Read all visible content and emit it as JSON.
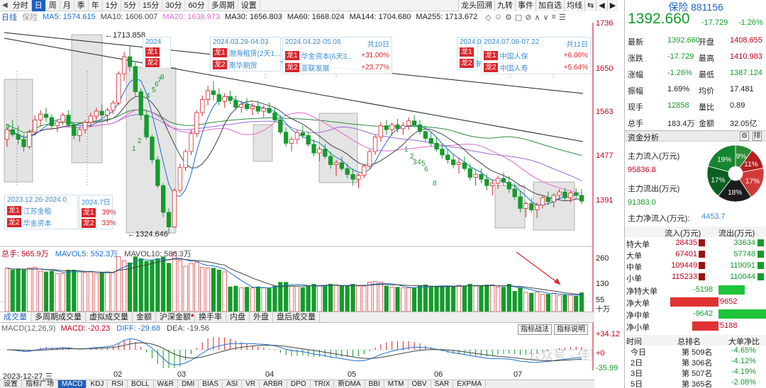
{
  "toolbar": {
    "items": [
      "分时",
      "日",
      "周",
      "月",
      "季",
      "年",
      "1分",
      "5分",
      "15分",
      "30分",
      "60分",
      "多周期",
      "设置"
    ],
    "active_index": 1,
    "right_buttons": [
      "龙头回溯",
      "九转",
      "事件",
      "加自选",
      "均线",
      "⇆"
    ]
  },
  "ma_legend": {
    "label": "日线",
    "name": "保险",
    "entries": [
      {
        "label": "MA5: 1574.615",
        "color": "#1c6fd1"
      },
      {
        "label": "MA10: 1606.007",
        "color": "#444444"
      },
      {
        "label": "MA20: 1638.973",
        "color": "#e26ad3"
      },
      {
        "label": "MA30: 1656.803",
        "color": "#1a1a1a"
      },
      {
        "label": "MA60: 1668.024",
        "color": "#1f1f1f"
      },
      {
        "label": "MA144: 1704.680",
        "color": "#1f1f1f"
      },
      {
        "label": "MA255: 1713.672",
        "color": "#1f1f1f"
      }
    ]
  },
  "price_axis": [
    "1736",
    "1650",
    "1563",
    "1477",
    "1391"
  ],
  "high_label": "1713.858",
  "low_label": "1324.646",
  "annotations": [
    {
      "header": "2024",
      "left": "",
      "rows": [
        {
          "tag": "龙1",
          "name": "",
          "pct": ""
        },
        {
          "tag": "龙2",
          "name": "",
          "pct": ""
        }
      ]
    },
    {
      "header": "2024.03.28-04.03",
      "left": "",
      "rows": [
        {
          "tag": "龙1",
          "name": "渤海租赁(2天1...",
          "pct": ""
        },
        {
          "tag": "龙2",
          "name": "南华期货",
          "pct": ""
        }
      ]
    },
    {
      "header": "2024.04.22-05.08",
      "left": "共10日",
      "rows": [
        {
          "tag": "龙1",
          "name": "华金资本(6天3...",
          "pct": "+31.00%"
        },
        {
          "tag": "龙2",
          "name": "亚联发展",
          "pct": "+23.77%"
        }
      ]
    },
    {
      "header": "2024.0",
      "left": "",
      "rows": [
        {
          "tag": "龙1",
          "name": "",
          "pct": ""
        },
        {
          "tag": "龙2",
          "name": "新",
          "pct": ""
        }
      ]
    },
    {
      "header": "2024.07.08-07.22",
      "left": "共11日",
      "rows": [
        {
          "tag": "龙1",
          "name": "中国人保",
          "pct": "+6.00%"
        },
        {
          "tag": "龙2",
          "name": "中国人寿",
          "pct": "+5.64%"
        }
      ]
    },
    {
      "header": "2023.12.26-2024.0",
      "left": "",
      "rows": [
        {
          "tag": "龙1",
          "name": "江苏金租",
          "pct": ""
        },
        {
          "tag": "龙2",
          "name": "华金资本",
          "pct": ""
        }
      ]
    },
    {
      "header": "2024.7日",
      "left": "",
      "rows": [
        {
          "tag": "龙1",
          "name": "",
          "pct": "39%"
        },
        {
          "tag": "龙2",
          "name": "",
          "pct": "33%"
        }
      ]
    }
  ],
  "nine_turn_labels": {
    "green": [
      "9",
      "1",
      "2",
      "3",
      "4",
      "5",
      "6",
      "7",
      "8",
      "1",
      "2",
      "3",
      "4",
      "5",
      "6",
      "8"
    ],
    "red": [
      "9",
      "8",
      "7",
      "6",
      "5",
      "4",
      "3",
      "2",
      "1",
      "9"
    ]
  },
  "volume": {
    "label": "总手: 565.9万",
    "mavol5": "MAVOL5: 552.3万",
    "mavol10": "MAVOL10: 586.3万",
    "axis": [
      "260",
      "130",
      "55"
    ],
    "unit": "十万"
  },
  "tabs": [
    "成交量",
    "多周期成交量",
    "虚拟成交量",
    "金额",
    "沪深金额",
    "换手率",
    "内盘",
    "外盘",
    "盘后成交量"
  ],
  "macd": {
    "label": "MACD(12,26,9)",
    "macd": "MACD: -20.23",
    "diff": "DIFF: -29.68",
    "dea": "DEA: -19.56",
    "axis": [
      "+34.12",
      "+0",
      "-35.99"
    ],
    "buttons": [
      "指标战法",
      "指标说明"
    ]
  },
  "date_axis": [
    "2023-12-27,三",
    "02",
    "03",
    "04",
    "05",
    "06",
    "07"
  ],
  "indicator_tabs": [
    "设置",
    "指标广场",
    "MACD",
    "KDJ",
    "RSI",
    "BOLL",
    "W&R",
    "DMI",
    "BIAS",
    "ASI",
    "VR",
    "ARBR",
    "DPO",
    "TRIX",
    "新DMA",
    "BBI",
    "MTM",
    "OBV",
    "SAR",
    "EXPMA"
  ],
  "watermark": "公众号 · 佳财分钟",
  "quote": {
    "name": "保险 881156",
    "price": "1392.660",
    "change": "-17.729",
    "pct": "-1.26%",
    "rows": [
      {
        "l1": "最新",
        "v1": "1392.660",
        "l2": "开盘",
        "v2": "1408.655"
      },
      {
        "l1": "涨跌",
        "v1": "-17.729",
        "l2": "最高",
        "v2": "1410.983"
      },
      {
        "l1": "涨幅",
        "v1": "-1.26%",
        "l2": "最低",
        "v2": "1387.124"
      },
      {
        "l1": "振幅",
        "v1": "1.69%",
        "l2": "均价",
        "v2": "17.481"
      },
      {
        "l1": "现手",
        "v1": "12858",
        "l2": "量比",
        "v2": "0.89"
      },
      {
        "l1": "总手",
        "v1": "183.4万",
        "l2": "金额",
        "v2": "32.05亿"
      }
    ]
  },
  "fund_flow": {
    "title": "资金分析",
    "inflow_label": "主力流入(万元)",
    "inflow": "95836.8",
    "outflow_label": "主力流出(万元)",
    "outflow": "91383.0",
    "net_label": "主力净流入(万元):",
    "net": "4453.7",
    "donut": [
      {
        "label": "9%",
        "value": 9,
        "color": "#2e8b3a"
      },
      {
        "label": "11%",
        "value": 11,
        "color": "#b51f1f"
      },
      {
        "label": "17%",
        "value": 17,
        "color": "#d23a3a"
      },
      {
        "label": "18%",
        "value": 18,
        "color": "#1b1b1b"
      },
      {
        "label": "17%",
        "value": 17,
        "color": "#0b5f21"
      },
      {
        "label": "19%",
        "value": 19,
        "color": "#16852f"
      }
    ],
    "table_headers": [
      "流入(万元)",
      "流出(万元)"
    ],
    "table": [
      {
        "type": "特大单",
        "in": "28435",
        "out": "33634"
      },
      {
        "type": "大单",
        "in": "67401",
        "out": "57748"
      },
      {
        "type": "中单",
        "in": "109449",
        "out": "119091"
      },
      {
        "type": "小单",
        "in": "115233",
        "out": "110044"
      }
    ],
    "net_rows": [
      {
        "label": "净特大单",
        "value": "-5198",
        "sign": -1,
        "mag": 0.54
      },
      {
        "label": "净大单",
        "value": "9652",
        "sign": 1,
        "mag": 1.0
      },
      {
        "label": "净中单",
        "value": "-9642",
        "sign": -1,
        "mag": 1.0
      },
      {
        "label": "净小单",
        "value": "5188",
        "sign": 1,
        "mag": 0.54
      }
    ],
    "rank_headers": [
      "时间",
      "总排名",
      "大单净比"
    ],
    "rank": [
      {
        "t": "今日",
        "r": "第 509名",
        "v": "-4.65%"
      },
      {
        "t": "2日",
        "r": "第 306名",
        "v": "-4.12%"
      },
      {
        "t": "3日",
        "r": "第 507名",
        "v": "-4.19%"
      },
      {
        "t": "5日",
        "r": "第 365名",
        "v": "-2.08%"
      }
    ]
  },
  "chart_data": {
    "type": "candlestick",
    "title": "保险 881156 日线",
    "x": [
      "2023-12-27",
      "2024-02",
      "2024-03",
      "2024-04",
      "2024-05",
      "2024-06",
      "2024-07"
    ],
    "ohlc": [
      [
        1520,
        1545,
        1505,
        1540
      ],
      [
        1540,
        1560,
        1525,
        1530
      ],
      [
        1530,
        1548,
        1510,
        1520
      ],
      [
        1520,
        1530,
        1495,
        1505
      ],
      [
        1505,
        1540,
        1500,
        1535
      ],
      [
        1535,
        1570,
        1528,
        1560
      ],
      [
        1560,
        1580,
        1548,
        1572
      ],
      [
        1572,
        1585,
        1555,
        1565
      ],
      [
        1565,
        1572,
        1540,
        1548
      ],
      [
        1548,
        1560,
        1535,
        1556
      ],
      [
        1556,
        1575,
        1550,
        1570
      ],
      [
        1570,
        1580,
        1545,
        1550
      ],
      [
        1550,
        1555,
        1520,
        1528
      ],
      [
        1528,
        1545,
        1515,
        1540
      ],
      [
        1540,
        1560,
        1532,
        1555
      ],
      [
        1555,
        1575,
        1545,
        1568
      ],
      [
        1568,
        1585,
        1560,
        1578
      ],
      [
        1578,
        1592,
        1565,
        1570
      ],
      [
        1570,
        1585,
        1555,
        1580
      ],
      [
        1580,
        1600,
        1572,
        1595
      ],
      [
        1595,
        1660,
        1590,
        1655
      ],
      [
        1655,
        1700,
        1640,
        1690
      ],
      [
        1690,
        1714,
        1660,
        1670
      ],
      [
        1670,
        1680,
        1610,
        1618
      ],
      [
        1618,
        1625,
        1560,
        1570
      ],
      [
        1570,
        1578,
        1520,
        1525
      ],
      [
        1525,
        1530,
        1470,
        1478
      ],
      [
        1478,
        1485,
        1420,
        1425
      ],
      [
        1425,
        1430,
        1360,
        1370
      ],
      [
        1370,
        1378,
        1325,
        1340
      ],
      [
        1340,
        1420,
        1338,
        1415
      ],
      [
        1415,
        1470,
        1410,
        1462
      ],
      [
        1462,
        1500,
        1455,
        1495
      ],
      [
        1495,
        1540,
        1488,
        1532
      ],
      [
        1532,
        1580,
        1525,
        1575
      ],
      [
        1575,
        1610,
        1568,
        1602
      ],
      [
        1602,
        1630,
        1590,
        1620
      ],
      [
        1620,
        1640,
        1600,
        1612
      ],
      [
        1612,
        1625,
        1590,
        1598
      ],
      [
        1598,
        1615,
        1585,
        1608
      ],
      [
        1608,
        1620,
        1592,
        1600
      ],
      [
        1600,
        1610,
        1580,
        1586
      ],
      [
        1586,
        1600,
        1575,
        1592
      ],
      [
        1592,
        1605,
        1578,
        1583
      ],
      [
        1583,
        1595,
        1570,
        1588
      ],
      [
        1588,
        1600,
        1572,
        1578
      ],
      [
        1578,
        1590,
        1565,
        1584
      ],
      [
        1584,
        1596,
        1572,
        1575
      ],
      [
        1575,
        1585,
        1555,
        1560
      ],
      [
        1560,
        1570,
        1530,
        1535
      ],
      [
        1535,
        1545,
        1505,
        1512
      ],
      [
        1512,
        1525,
        1495,
        1520
      ],
      [
        1520,
        1540,
        1510,
        1534
      ],
      [
        1534,
        1548,
        1522,
        1528
      ],
      [
        1528,
        1535,
        1505,
        1510
      ],
      [
        1510,
        1520,
        1485,
        1492
      ],
      [
        1492,
        1505,
        1475,
        1500
      ],
      [
        1500,
        1510,
        1480,
        1485
      ],
      [
        1485,
        1495,
        1460,
        1468
      ],
      [
        1468,
        1478,
        1445,
        1472
      ],
      [
        1472,
        1485,
        1455,
        1460
      ],
      [
        1460,
        1470,
        1440,
        1448
      ],
      [
        1448,
        1460,
        1425,
        1438
      ],
      [
        1438,
        1450,
        1420,
        1446
      ],
      [
        1446,
        1470,
        1440,
        1465
      ],
      [
        1465,
        1500,
        1460,
        1495
      ],
      [
        1495,
        1530,
        1488,
        1525
      ],
      [
        1525,
        1555,
        1515,
        1548
      ],
      [
        1548,
        1560,
        1530,
        1540
      ],
      [
        1540,
        1555,
        1528,
        1550
      ],
      [
        1550,
        1562,
        1535,
        1542
      ],
      [
        1542,
        1555,
        1530,
        1548
      ],
      [
        1548,
        1565,
        1540,
        1558
      ],
      [
        1558,
        1570,
        1545,
        1550
      ],
      [
        1550,
        1560,
        1530,
        1536
      ],
      [
        1536,
        1548,
        1515,
        1522
      ],
      [
        1522,
        1535,
        1505,
        1512
      ],
      [
        1512,
        1525,
        1495,
        1500
      ],
      [
        1500,
        1510,
        1480,
        1488
      ],
      [
        1488,
        1500,
        1470,
        1478
      ],
      [
        1478,
        1490,
        1460,
        1468
      ],
      [
        1468,
        1482,
        1450,
        1472
      ],
      [
        1472,
        1485,
        1455,
        1460
      ],
      [
        1460,
        1470,
        1435,
        1442
      ],
      [
        1442,
        1455,
        1425,
        1448
      ],
      [
        1448,
        1460,
        1430,
        1438
      ],
      [
        1438,
        1448,
        1415,
        1425
      ],
      [
        1425,
        1438,
        1405,
        1430
      ],
      [
        1430,
        1445,
        1418,
        1440
      ],
      [
        1440,
        1452,
        1425,
        1432
      ],
      [
        1432,
        1445,
        1410,
        1418
      ],
      [
        1418,
        1430,
        1395,
        1402
      ],
      [
        1402,
        1415,
        1370,
        1378
      ],
      [
        1378,
        1392,
        1360,
        1388
      ],
      [
        1388,
        1400,
        1370,
        1375
      ],
      [
        1375,
        1390,
        1358,
        1385
      ],
      [
        1385,
        1405,
        1378,
        1400
      ],
      [
        1400,
        1412,
        1385,
        1392
      ],
      [
        1392,
        1410,
        1380,
        1405
      ],
      [
        1405,
        1418,
        1395,
        1412
      ],
      [
        1412,
        1420,
        1395,
        1400
      ],
      [
        1400,
        1415,
        1390,
        1410
      ],
      [
        1410,
        1420,
        1398,
        1405
      ],
      [
        1405,
        1418,
        1387,
        1393
      ]
    ],
    "ylim": [
      1300,
      1760
    ],
    "ma_series": [
      "MA5",
      "MA10",
      "MA20",
      "MA30",
      "MA60",
      "MA144",
      "MA255"
    ]
  }
}
